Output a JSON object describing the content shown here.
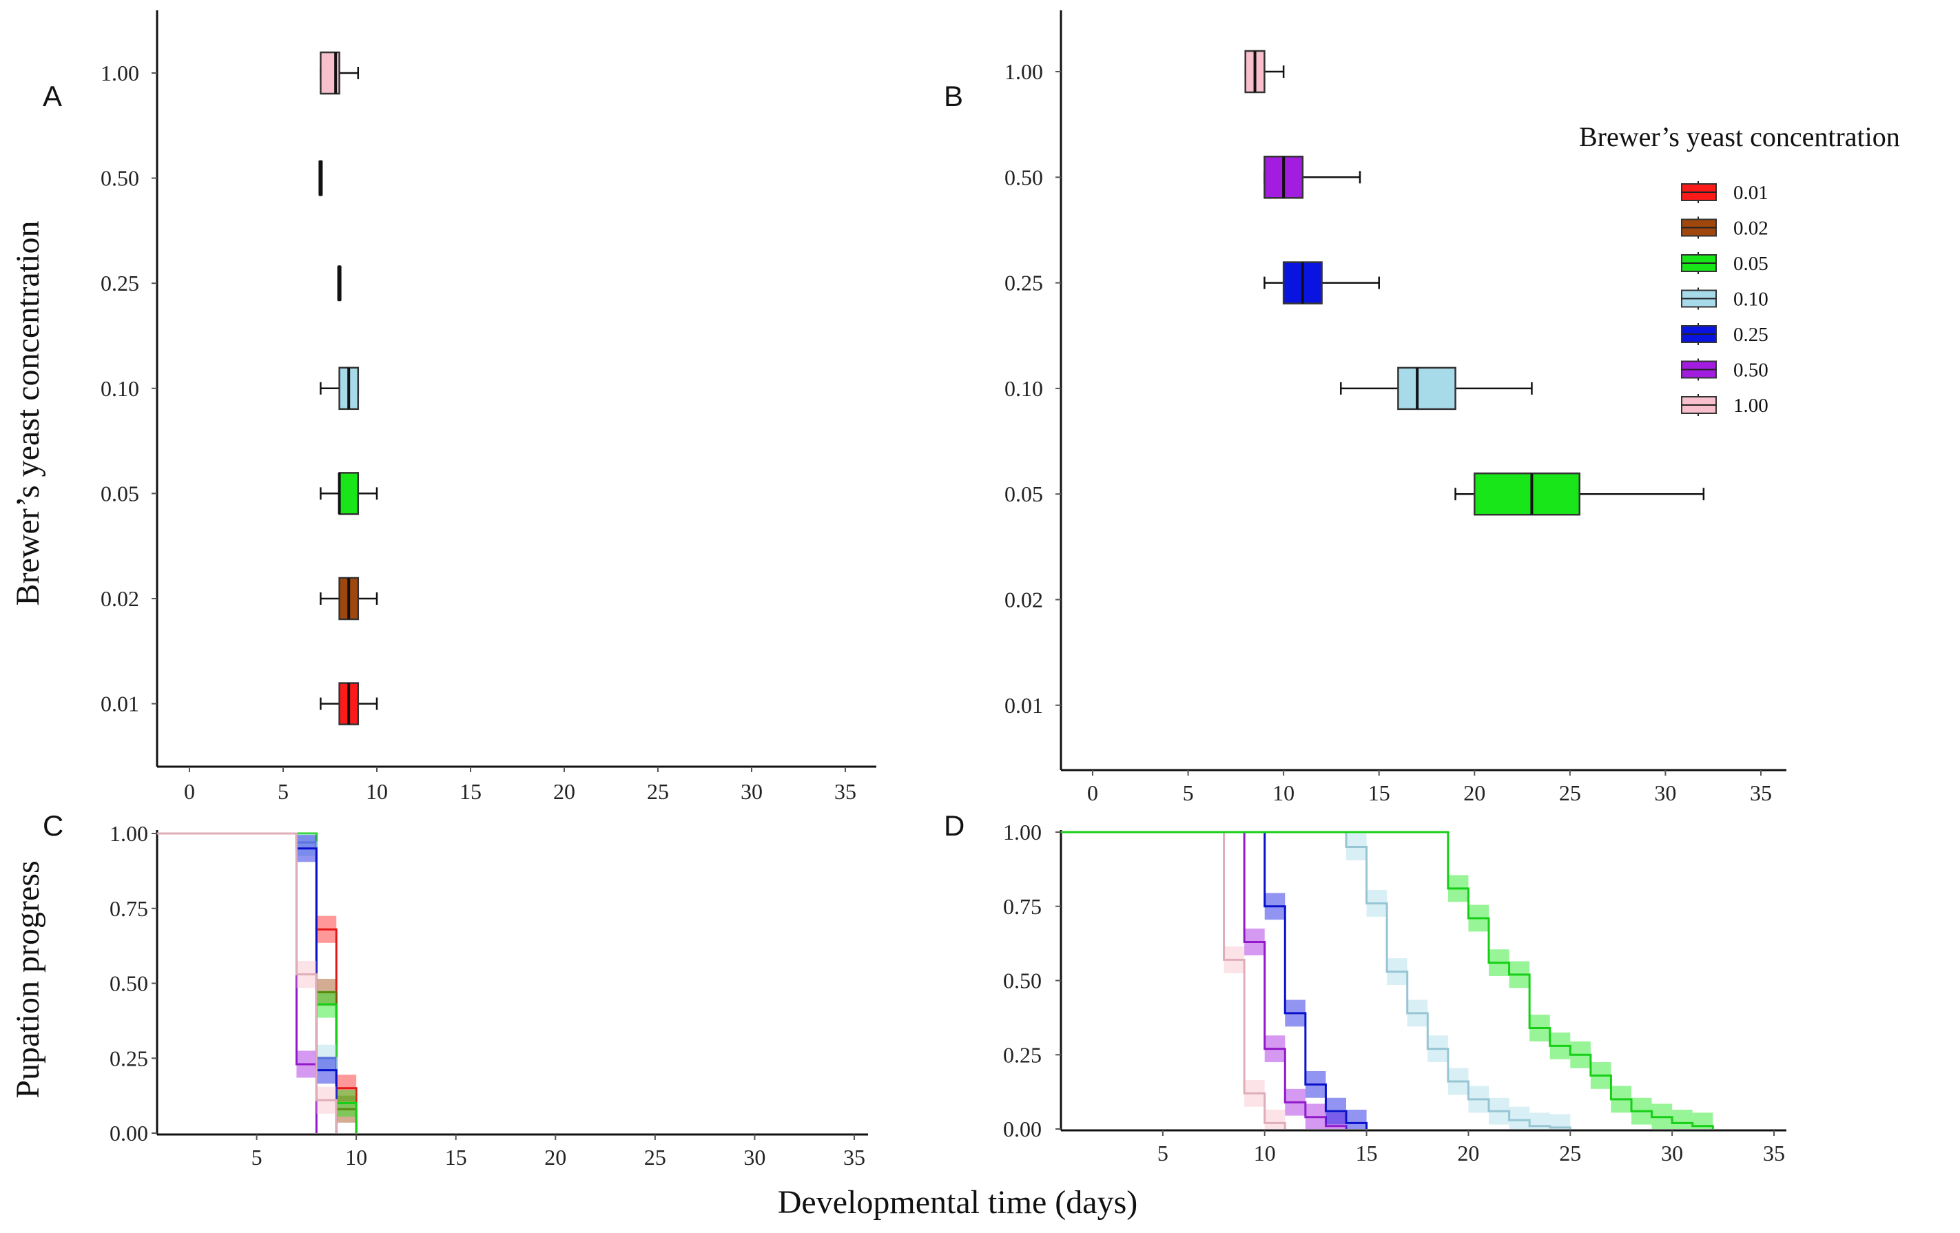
{
  "colors": {
    "0.01": "#ff1a1a",
    "0.02": "#a0470d",
    "0.05": "#19e619",
    "0.10": "#a8dbea",
    "0.25": "#0a14e0",
    "0.50": "#a21de0",
    "1.00": "#f8c0cc"
  },
  "labels": {
    "panel_a": "A",
    "panel_b": "B",
    "panel_c": "C",
    "panel_d": "D",
    "ylabel_top": "Brewer’s yeast concentration",
    "ylabel_bottom": "Pupation progress",
    "xlabel": "Developmental time (days)",
    "legend_title": "Brewer’s yeast concentration"
  },
  "chart_data": [
    {
      "panel": "A",
      "type": "boxplot",
      "orientation": "horizontal",
      "categories": [
        "1.00",
        "0.50",
        "0.25",
        "0.10",
        "0.05",
        "0.02",
        "0.01"
      ],
      "xticks": [
        "0",
        "5",
        "10",
        "15",
        "20",
        "25",
        "30",
        "35"
      ],
      "xlim": [
        -1.7,
        36.5
      ],
      "boxes": [
        {
          "category": "1.00",
          "min": 7.0,
          "q1": 7.0,
          "median": 7.8,
          "q3": 8.0,
          "max": 9.0
        },
        {
          "category": "0.50",
          "min": 7.0,
          "q1": 7.0,
          "median": 7.0,
          "q3": 7.0,
          "max": 7.0
        },
        {
          "category": "0.25",
          "min": 8.0,
          "q1": 8.0,
          "median": 8.0,
          "q3": 8.0,
          "max": 8.0
        },
        {
          "category": "0.10",
          "min": 7.0,
          "q1": 8.0,
          "median": 8.5,
          "q3": 9.0,
          "max": 9.0
        },
        {
          "category": "0.05",
          "min": 7.0,
          "q1": 8.0,
          "median": 8.0,
          "q3": 9.0,
          "max": 10.0
        },
        {
          "category": "0.02",
          "min": 7.0,
          "q1": 8.0,
          "median": 8.5,
          "q3": 9.0,
          "max": 10.0
        },
        {
          "category": "0.01",
          "min": 7.0,
          "q1": 8.0,
          "median": 8.5,
          "q3": 9.0,
          "max": 10.0
        }
      ]
    },
    {
      "panel": "B",
      "type": "boxplot",
      "orientation": "horizontal",
      "categories": [
        "1.00",
        "0.50",
        "0.25",
        "0.10",
        "0.05",
        "0.02",
        "0.01"
      ],
      "xticks": [
        "0",
        "5",
        "10",
        "15",
        "20",
        "25",
        "30",
        "35"
      ],
      "xlim": [
        -1.7,
        36.5
      ],
      "legend": {
        "title": "Brewer’s yeast concentration",
        "entries": [
          "0.01",
          "0.02",
          "0.05",
          "0.10",
          "0.25",
          "0.50",
          "1.00"
        ]
      },
      "boxes": [
        {
          "category": "1.00",
          "min": 8.0,
          "q1": 8.0,
          "median": 8.5,
          "q3": 9.0,
          "max": 10.0
        },
        {
          "category": "0.50",
          "min": 9.0,
          "q1": 9.0,
          "median": 10.0,
          "q3": 11.0,
          "max": 14.0
        },
        {
          "category": "0.25",
          "min": 9.0,
          "q1": 10.0,
          "median": 11.0,
          "q3": 12.0,
          "max": 15.0
        },
        {
          "category": "0.10",
          "min": 13.0,
          "q1": 16.0,
          "median": 17.0,
          "q3": 19.0,
          "max": 23.0
        },
        {
          "category": "0.05",
          "min": 19.0,
          "q1": 20.0,
          "median": 23.0,
          "q3": 25.5,
          "max": 32.0
        }
      ]
    },
    {
      "panel": "C",
      "type": "line",
      "step": true,
      "ylabel": "Pupation progress",
      "xticks": [
        "5",
        "10",
        "15",
        "20",
        "25",
        "30",
        "35"
      ],
      "yticks": [
        "0.00",
        "0.25",
        "0.50",
        "0.75",
        "1.00"
      ],
      "xlim": [
        0,
        35
      ],
      "ylim": [
        0,
        1
      ],
      "series": [
        {
          "name": "0.01",
          "x": [
            0,
            8,
            9,
            10
          ],
          "y": [
            1.0,
            0.68,
            0.15,
            0.0
          ]
        },
        {
          "name": "0.02",
          "x": [
            0,
            8,
            9,
            10
          ],
          "y": [
            1.0,
            0.47,
            0.08,
            0.0
          ]
        },
        {
          "name": "0.05",
          "x": [
            0,
            8,
            9,
            10
          ],
          "y": [
            1.0,
            0.43,
            0.1,
            0.0
          ]
        },
        {
          "name": "0.10",
          "x": [
            0,
            7,
            8,
            9
          ],
          "y": [
            1.0,
            0.97,
            0.25,
            0.0
          ]
        },
        {
          "name": "0.25",
          "x": [
            0,
            7,
            8,
            9
          ],
          "y": [
            1.0,
            0.95,
            0.21,
            0.0
          ]
        },
        {
          "name": "0.50",
          "x": [
            0,
            7,
            8
          ],
          "y": [
            1.0,
            0.23,
            0.0
          ]
        },
        {
          "name": "1.00",
          "x": [
            0,
            7,
            8,
            9
          ],
          "y": [
            1.0,
            0.53,
            0.11,
            0.0
          ]
        }
      ]
    },
    {
      "panel": "D",
      "type": "line",
      "step": true,
      "xticks": [
        "5",
        "10",
        "15",
        "20",
        "25",
        "30",
        "35"
      ],
      "yticks": [
        "0.00",
        "0.25",
        "0.50",
        "0.75",
        "1.00"
      ],
      "xlim": [
        0,
        35
      ],
      "ylim": [
        0,
        1
      ],
      "series": [
        {
          "name": "1.00",
          "x": [
            0,
            8,
            9,
            10,
            11
          ],
          "y": [
            1.0,
            0.57,
            0.12,
            0.02,
            0.0
          ]
        },
        {
          "name": "0.50",
          "x": [
            0,
            9,
            10,
            11,
            12,
            13,
            14
          ],
          "y": [
            1.0,
            0.63,
            0.27,
            0.09,
            0.04,
            0.01,
            0.0
          ]
        },
        {
          "name": "0.25",
          "x": [
            0,
            10,
            11,
            12,
            13,
            14,
            15
          ],
          "y": [
            1.0,
            0.75,
            0.39,
            0.15,
            0.06,
            0.02,
            0.0
          ]
        },
        {
          "name": "0.10",
          "x": [
            0,
            14,
            15,
            16,
            17,
            18,
            19,
            20,
            21,
            22,
            23,
            24,
            25
          ],
          "y": [
            1.0,
            0.95,
            0.76,
            0.53,
            0.39,
            0.27,
            0.16,
            0.1,
            0.06,
            0.03,
            0.01,
            0.005,
            0.0
          ]
        },
        {
          "name": "0.05",
          "x": [
            0,
            19,
            20,
            21,
            22,
            23,
            24,
            25,
            26,
            27,
            28,
            29,
            30,
            31,
            32
          ],
          "y": [
            1.0,
            0.81,
            0.71,
            0.56,
            0.52,
            0.34,
            0.28,
            0.25,
            0.18,
            0.1,
            0.06,
            0.04,
            0.02,
            0.01,
            0.0
          ]
        }
      ]
    }
  ]
}
